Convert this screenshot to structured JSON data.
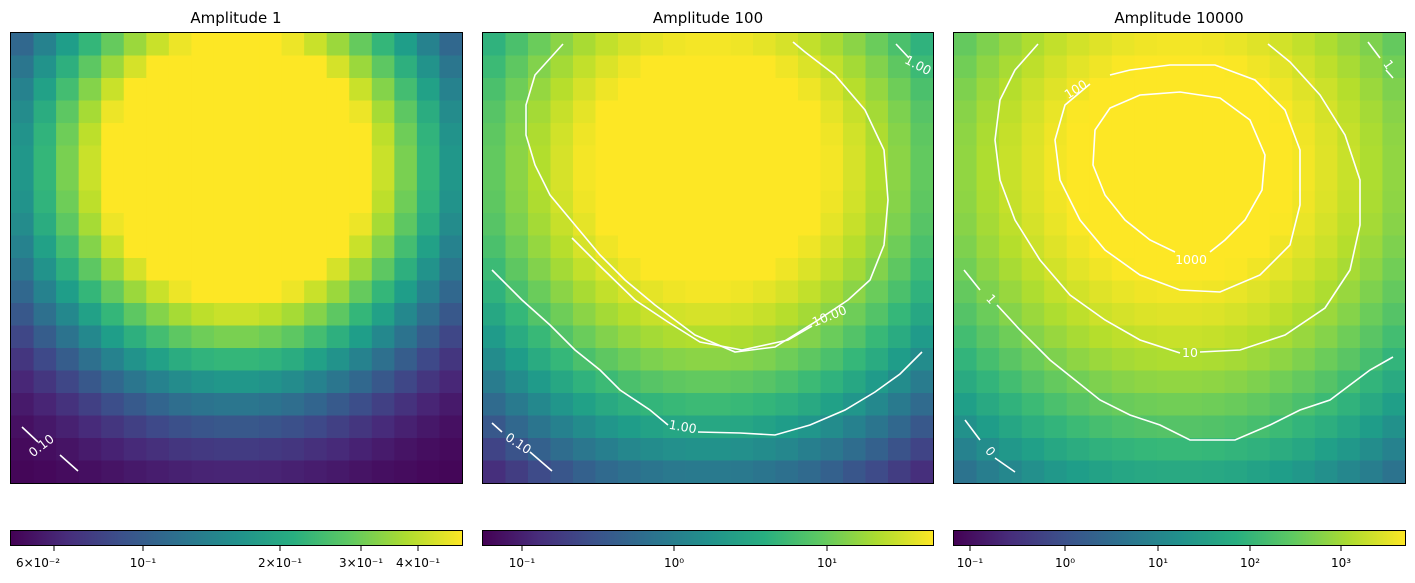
{
  "chart_data": [
    {
      "type": "heatmap",
      "title": "Amplitude 1",
      "amplitude": 1,
      "grid_size": 20,
      "colorscale": "viridis",
      "color_scale_type": "log",
      "color_range": [
        0.05,
        0.5
      ],
      "colorbar_orientation": "horizontal",
      "colorbar_ticks": [
        "6×10⁻²",
        "10⁻¹",
        "2×10⁻¹",
        "3×10⁻¹",
        "4×10⁻¹"
      ],
      "colorbar_tick_values": [
        0.06,
        0.1,
        0.2,
        0.3,
        0.4
      ],
      "contour_levels": [
        0.1
      ],
      "contour_labels": [
        "0.10"
      ],
      "axis_ticks_shown": false
    },
    {
      "type": "heatmap",
      "title": "Amplitude 100",
      "amplitude": 100,
      "grid_size": 20,
      "colorscale": "viridis",
      "color_scale_type": "log",
      "color_range": [
        0.06,
        50
      ],
      "colorbar_orientation": "horizontal",
      "colorbar_ticks": [
        "10⁻¹",
        "10⁰",
        "10¹"
      ],
      "colorbar_tick_values": [
        0.1,
        1,
        10
      ],
      "contour_levels": [
        0.1,
        1,
        10,
        1
      ],
      "contour_labels": [
        "0.10",
        "1.00",
        "10.00",
        "1.00"
      ],
      "axis_ticks_shown": false
    },
    {
      "type": "heatmap",
      "title": "Amplitude 10000",
      "amplitude": 10000,
      "grid_size": 20,
      "colorscale": "viridis",
      "color_scale_type": "log",
      "color_range": [
        0.06,
        5000
      ],
      "colorbar_orientation": "horizontal",
      "colorbar_ticks": [
        "10⁻¹",
        "10⁰",
        "10¹",
        "10²",
        "10³"
      ],
      "colorbar_tick_values": [
        0.1,
        1,
        10,
        100,
        1000
      ],
      "contour_levels": [
        0,
        1,
        10,
        100,
        1000,
        1
      ],
      "contour_labels": [
        "0",
        "1",
        "10",
        "100",
        "1000",
        "1"
      ],
      "axis_ticks_shown": false
    }
  ]
}
